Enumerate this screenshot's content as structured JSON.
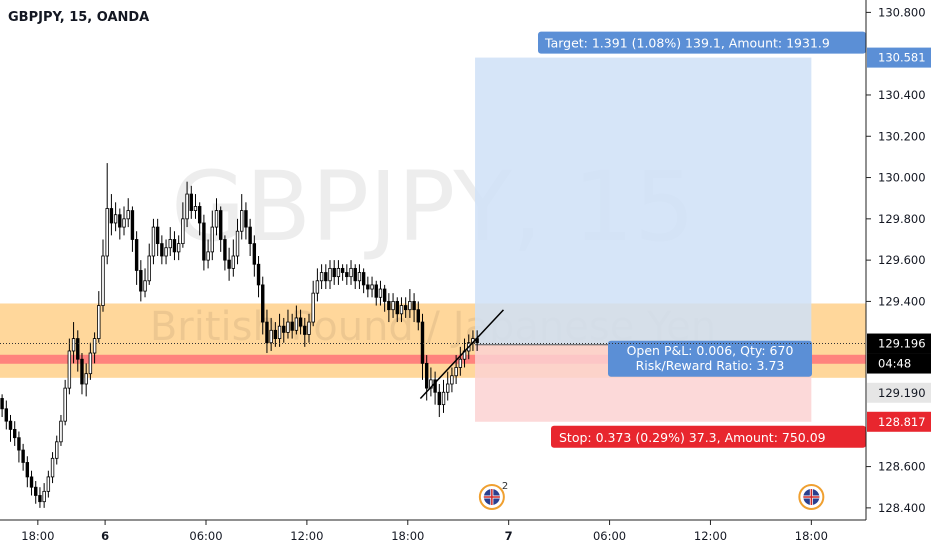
{
  "header": {
    "symbol_label": "GBPJPY, 15, OANDA"
  },
  "watermark": {
    "symbol": "GBPJPY, 15",
    "description": "British Pound / Japanese Yen"
  },
  "colors": {
    "up": "#ffffff",
    "down": "#000000",
    "wick": "#000000",
    "zone": "#ffd08a",
    "support_line": "#ff7a7a",
    "target_fill": "#cfe0f7",
    "stop_fill": "#fbd2d2",
    "target_label": "#5b8fd6",
    "stop_label": "#e8262e",
    "pnl_box": "#5b8fd6",
    "last_price": "#000000",
    "countdown": "#000000",
    "stop_price_bg": "#e8262e",
    "target_price_bg": "#5b8fd6"
  },
  "icons": {
    "event_flag_1": "uk-flag-icon",
    "event_flag_2": "uk-flag-icon"
  },
  "chart_data": {
    "type": "candlestick",
    "title": "",
    "xlabel": "",
    "ylabel": "",
    "ylim": [
      128.38,
      130.86
    ],
    "y_ticks": [
      "130.800",
      "130.400",
      "130.200",
      "130.000",
      "129.800",
      "129.600",
      "129.400",
      "128.600",
      "128.400"
    ],
    "x_ticks": [
      {
        "label": "18:00",
        "t": 9
      },
      {
        "label": "6",
        "t": 25
      },
      {
        "label": "06:00",
        "t": 49
      },
      {
        "label": "12:00",
        "t": 73
      },
      {
        "label": "18:00",
        "t": 97
      },
      {
        "label": "7",
        "t": 121
      },
      {
        "label": "06:00",
        "t": 145
      },
      {
        "label": "12:00",
        "t": 169
      },
      {
        "label": "18:00",
        "t": 193
      }
    ],
    "candles": [
      [
        128.93,
        128.88,
        128.95,
        128.84
      ],
      [
        128.88,
        128.82,
        128.92,
        128.78
      ],
      [
        128.82,
        128.78,
        128.85,
        128.72
      ],
      [
        128.78,
        128.74,
        128.82,
        128.7
      ],
      [
        128.74,
        128.68,
        128.77,
        128.62
      ],
      [
        128.68,
        128.62,
        128.71,
        128.58
      ],
      [
        128.62,
        128.55,
        128.65,
        128.5
      ],
      [
        128.55,
        128.5,
        128.58,
        128.46
      ],
      [
        128.5,
        128.46,
        128.53,
        128.42
      ],
      [
        128.46,
        128.43,
        128.5,
        128.4
      ],
      [
        128.43,
        128.48,
        128.52,
        128.4
      ],
      [
        128.48,
        128.55,
        128.58,
        128.45
      ],
      [
        128.55,
        128.64,
        128.67,
        128.52
      ],
      [
        128.64,
        128.72,
        128.75,
        128.61
      ],
      [
        128.72,
        128.82,
        128.85,
        128.7
      ],
      [
        128.82,
        128.98,
        129.02,
        128.8
      ],
      [
        128.98,
        129.16,
        129.22,
        128.95
      ],
      [
        129.16,
        129.22,
        129.3,
        129.1
      ],
      [
        129.22,
        129.12,
        129.26,
        129.06
      ],
      [
        129.12,
        129.0,
        129.15,
        128.95
      ],
      [
        129.0,
        129.05,
        129.1,
        128.94
      ],
      [
        129.05,
        129.15,
        129.2,
        129.02
      ],
      [
        129.15,
        129.22,
        129.25,
        129.1
      ],
      [
        129.22,
        129.38,
        129.45,
        129.2
      ],
      [
        129.38,
        129.62,
        129.7,
        129.35
      ],
      [
        129.62,
        129.85,
        130.07,
        129.58
      ],
      [
        129.85,
        129.78,
        129.92,
        129.72
      ],
      [
        129.78,
        129.82,
        129.88,
        129.74
      ],
      [
        129.82,
        129.76,
        129.85,
        129.7
      ],
      [
        129.76,
        129.8,
        129.86,
        129.72
      ],
      [
        129.8,
        129.84,
        129.9,
        129.76
      ],
      [
        129.84,
        129.7,
        129.86,
        129.64
      ],
      [
        129.7,
        129.55,
        129.74,
        129.48
      ],
      [
        129.55,
        129.45,
        129.6,
        129.4
      ],
      [
        129.45,
        129.5,
        129.56,
        129.42
      ],
      [
        129.5,
        129.62,
        129.68,
        129.48
      ],
      [
        129.62,
        129.76,
        129.8,
        129.58
      ],
      [
        129.76,
        129.68,
        129.8,
        129.62
      ],
      [
        129.68,
        129.62,
        129.72,
        129.58
      ],
      [
        129.62,
        129.66,
        129.7,
        129.58
      ],
      [
        129.66,
        129.7,
        129.76,
        129.62
      ],
      [
        129.7,
        129.64,
        129.74,
        129.6
      ],
      [
        129.64,
        129.68,
        129.72,
        129.6
      ],
      [
        129.68,
        129.8,
        129.88,
        129.66
      ],
      [
        129.8,
        129.92,
        129.98,
        129.76
      ],
      [
        129.92,
        129.84,
        129.96,
        129.8
      ],
      [
        129.84,
        129.86,
        129.92,
        129.8
      ],
      [
        129.86,
        129.78,
        129.88,
        129.72
      ],
      [
        129.78,
        129.6,
        129.82,
        129.55
      ],
      [
        129.6,
        129.64,
        129.7,
        129.56
      ],
      [
        129.64,
        129.76,
        129.84,
        129.6
      ],
      [
        129.76,
        129.84,
        129.9,
        129.72
      ],
      [
        129.84,
        129.7,
        129.86,
        129.64
      ],
      [
        129.7,
        129.6,
        129.72,
        129.55
      ],
      [
        129.6,
        129.56,
        129.66,
        129.5
      ],
      [
        129.56,
        129.62,
        129.7,
        129.52
      ],
      [
        129.62,
        129.74,
        129.8,
        129.58
      ],
      [
        129.74,
        129.84,
        129.92,
        129.7
      ],
      [
        129.84,
        129.76,
        129.88,
        129.7
      ],
      [
        129.76,
        129.68,
        129.8,
        129.62
      ],
      [
        129.68,
        129.58,
        129.72,
        129.52
      ],
      [
        129.58,
        129.48,
        129.62,
        129.42
      ],
      [
        129.48,
        129.3,
        129.52,
        129.24
      ],
      [
        129.3,
        129.2,
        129.36,
        129.15
      ],
      [
        129.2,
        129.26,
        129.32,
        129.16
      ],
      [
        129.26,
        129.22,
        129.3,
        129.18
      ],
      [
        129.22,
        129.28,
        129.34,
        129.18
      ],
      [
        129.28,
        129.25,
        129.32,
        129.2
      ],
      [
        129.25,
        129.3,
        129.36,
        129.22
      ],
      [
        129.3,
        129.26,
        129.34,
        129.22
      ],
      [
        129.26,
        129.32,
        129.38,
        129.24
      ],
      [
        129.32,
        129.28,
        129.36,
        129.24
      ],
      [
        129.28,
        129.24,
        129.32,
        129.18
      ],
      [
        129.24,
        129.3,
        129.34,
        129.2
      ],
      [
        129.3,
        129.44,
        129.5,
        129.28
      ],
      [
        129.44,
        129.5,
        129.56,
        129.4
      ],
      [
        129.5,
        129.54,
        129.58,
        129.46
      ],
      [
        129.54,
        129.5,
        129.58,
        129.46
      ],
      [
        129.5,
        129.56,
        129.6,
        129.46
      ],
      [
        129.56,
        129.52,
        129.6,
        129.48
      ],
      [
        129.52,
        129.56,
        129.6,
        129.48
      ],
      [
        129.56,
        129.54,
        129.58,
        129.5
      ],
      [
        129.54,
        129.52,
        129.58,
        129.48
      ],
      [
        129.52,
        129.56,
        129.6,
        129.48
      ],
      [
        129.56,
        129.5,
        129.58,
        129.46
      ],
      [
        129.5,
        129.54,
        129.58,
        129.46
      ],
      [
        129.54,
        129.48,
        129.56,
        129.44
      ],
      [
        129.48,
        129.46,
        129.52,
        129.42
      ],
      [
        129.46,
        129.48,
        129.52,
        129.42
      ],
      [
        129.48,
        129.42,
        129.5,
        129.38
      ],
      [
        129.42,
        129.46,
        129.5,
        129.38
      ],
      [
        129.46,
        129.4,
        129.48,
        129.35
      ],
      [
        129.4,
        129.36,
        129.44,
        129.3
      ],
      [
        129.36,
        129.4,
        129.44,
        129.32
      ],
      [
        129.4,
        129.34,
        129.42,
        129.3
      ],
      [
        129.34,
        129.38,
        129.42,
        129.3
      ],
      [
        129.38,
        129.36,
        129.42,
        129.32
      ],
      [
        129.36,
        129.4,
        129.46,
        129.32
      ],
      [
        129.4,
        129.36,
        129.44,
        129.3
      ],
      [
        129.36,
        129.3,
        129.4,
        129.26
      ],
      [
        129.3,
        129.1,
        129.34,
        129.02
      ],
      [
        129.1,
        128.98,
        129.14,
        128.92
      ],
      [
        128.98,
        129.02,
        129.08,
        128.94
      ],
      [
        129.02,
        128.96,
        129.06,
        128.9
      ],
      [
        128.96,
        128.9,
        129.0,
        128.84
      ],
      [
        128.9,
        128.96,
        129.02,
        128.86
      ],
      [
        128.96,
        129.0,
        129.06,
        128.92
      ],
      [
        129.0,
        129.04,
        129.08,
        128.96
      ],
      [
        129.04,
        129.08,
        129.14,
        129.0
      ],
      [
        129.08,
        129.12,
        129.18,
        129.04
      ],
      [
        129.12,
        129.16,
        129.22,
        129.08
      ],
      [
        129.16,
        129.2,
        129.24,
        129.12
      ],
      [
        129.2,
        129.22,
        129.26,
        129.16
      ],
      [
        129.22,
        129.2,
        129.26,
        129.16
      ]
    ],
    "support_level": 129.19,
    "zone": [
      129.03,
      129.39
    ],
    "trendline": [
      [
        100,
        128.93
      ],
      [
        115,
        129.33
      ]
    ],
    "position": {
      "entry": 129.19,
      "target": 130.581,
      "stop": 128.817,
      "t_start": 113,
      "t_end": 193,
      "target_label": "Target: 1.391 (1.08%) 139.1, Amount: 1931.9",
      "stop_label": "Stop: 0.373 (0.29%) 37.3, Amount: 750.09",
      "pnl_label": "Open P&L: 0.006, Qty: 670",
      "rr_label": "Risk/Reward Ratio: 3.73"
    },
    "price_tags": {
      "target": "130.581",
      "last": "129.196",
      "countdown": "04:48",
      "entry": "129.190",
      "stop": "128.817"
    },
    "last_price": 129.196,
    "events": [
      {
        "t": 117,
        "label": "2"
      },
      {
        "t": 193,
        "label": ""
      }
    ]
  }
}
